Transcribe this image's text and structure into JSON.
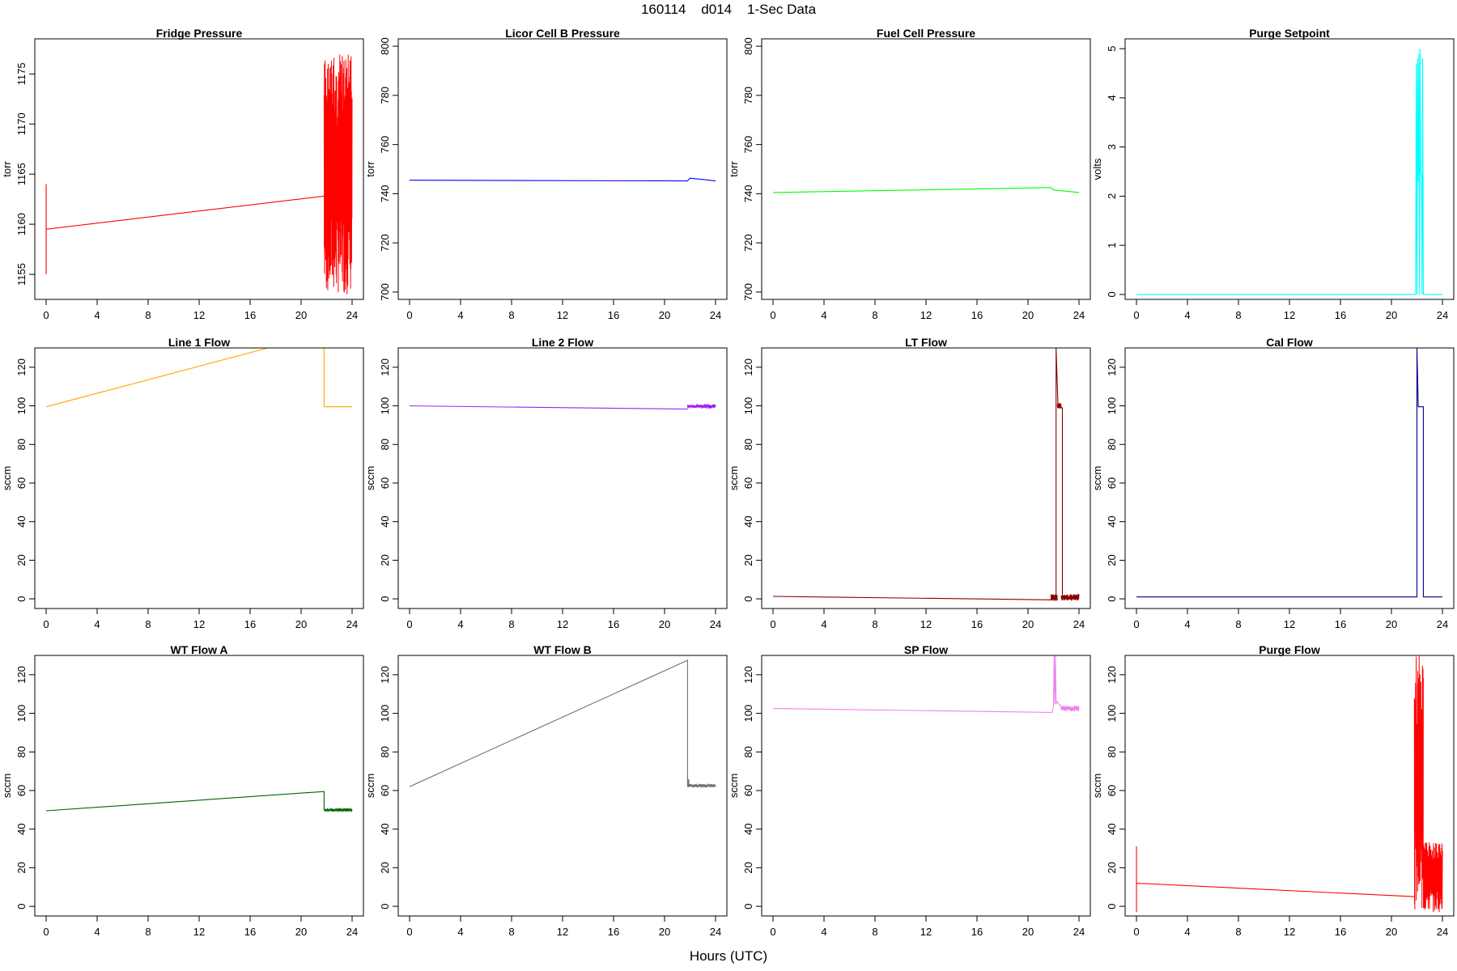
{
  "figure": {
    "title": "160114    d014    1-Sec Data",
    "xlabel": "Hours (UTC)"
  },
  "chart_data": [
    {
      "type": "line",
      "title": "Fridge Pressure",
      "ylabel": "torr",
      "color": "#ff0000",
      "xlim": [
        0,
        24
      ],
      "xticks": [
        0,
        4,
        8,
        12,
        16,
        20,
        24
      ],
      "ylim": [
        1152.5,
        1178.5
      ],
      "yticks": [
        1155,
        1160,
        1165,
        1170,
        1175
      ],
      "segments": [
        {
          "x": [
            0,
            0,
            0,
            21.8
          ],
          "y": [
            1155,
            1164,
            1159.5,
            1162.8
          ]
        }
      ],
      "bands": [
        {
          "x": [
            21.8,
            24
          ],
          "ymin": 1153,
          "ymax": 1177,
          "density": 160
        }
      ]
    },
    {
      "type": "line",
      "title": "Licor Cell B Pressure",
      "ylabel": "torr",
      "color": "#0000ff",
      "xlim": [
        0,
        24
      ],
      "xticks": [
        0,
        4,
        8,
        12,
        16,
        20,
        24
      ],
      "ylim": [
        697,
        803
      ],
      "yticks": [
        700,
        720,
        740,
        760,
        780,
        800
      ],
      "segments": [
        {
          "x": [
            0,
            21.8,
            22,
            23,
            24
          ],
          "y": [
            745.5,
            745.2,
            746.3,
            745.8,
            745.2
          ]
        }
      ],
      "bands": []
    },
    {
      "type": "line",
      "title": "Fuel Cell Pressure",
      "ylabel": "torr",
      "color": "#00ff00",
      "xlim": [
        0,
        24
      ],
      "xticks": [
        0,
        4,
        8,
        12,
        16,
        20,
        24
      ],
      "ylim": [
        697,
        803
      ],
      "yticks": [
        700,
        720,
        740,
        760,
        780,
        800
      ],
      "segments": [
        {
          "x": [
            0,
            21.8,
            22,
            23,
            24
          ],
          "y": [
            740.5,
            742.5,
            741.5,
            741,
            740.5
          ]
        }
      ],
      "bands": []
    },
    {
      "type": "line",
      "title": "Purge Setpoint",
      "ylabel": "volts",
      "color": "#00ffff",
      "xlim": [
        0,
        24
      ],
      "xticks": [
        0,
        4,
        8,
        12,
        16,
        20,
        24
      ],
      "ylim": [
        -0.1,
        5.2
      ],
      "yticks": [
        0,
        1,
        2,
        3,
        4,
        5
      ],
      "segments": [
        {
          "x": [
            0,
            21.9,
            21.95,
            22,
            22.05,
            22.1,
            22.15,
            22.2,
            22.25,
            22.3,
            22.35,
            22.4,
            22.45,
            22.5,
            22.6,
            24
          ],
          "y": [
            0,
            0,
            4.7,
            0,
            4.8,
            2.3,
            4.9,
            0,
            5.0,
            2.5,
            2.4,
            0,
            4.8,
            0,
            0,
            0
          ]
        }
      ],
      "bands": []
    },
    {
      "type": "line",
      "title": "Line 1 Flow",
      "ylabel": "sccm",
      "color": "#ffa500",
      "xlim": [
        0,
        24
      ],
      "xticks": [
        0,
        4,
        8,
        12,
        16,
        20,
        24
      ],
      "ylim": [
        -5,
        130
      ],
      "yticks": [
        0,
        20,
        40,
        60,
        80,
        100,
        120
      ],
      "segments": [
        {
          "x": [
            0,
            17.4
          ],
          "y": [
            99.5,
            130
          ]
        },
        {
          "x": [
            21.8,
            21.8,
            24
          ],
          "y": [
            130,
            99.5,
            99.5
          ]
        }
      ],
      "bands": []
    },
    {
      "type": "line",
      "title": "Line 2 Flow",
      "ylabel": "sccm",
      "color": "#a020f0",
      "xlim": [
        0,
        24
      ],
      "xticks": [
        0,
        4,
        8,
        12,
        16,
        20,
        24
      ],
      "ylim": [
        -5,
        130
      ],
      "yticks": [
        0,
        20,
        40,
        60,
        80,
        100,
        120
      ],
      "segments": [
        {
          "x": [
            0,
            21.8
          ],
          "y": [
            100,
            98.3
          ]
        }
      ],
      "bands": [
        {
          "x": [
            21.8,
            24
          ],
          "ymin": 98.5,
          "ymax": 101,
          "density": 60
        }
      ]
    },
    {
      "type": "line",
      "title": "LT Flow",
      "ylabel": "sccm",
      "color": "#8b0000",
      "xlim": [
        0,
        24
      ],
      "xticks": [
        0,
        4,
        8,
        12,
        16,
        20,
        24
      ],
      "ylim": [
        -5,
        130
      ],
      "yticks": [
        0,
        20,
        40,
        60,
        80,
        100,
        120
      ],
      "segments": [
        {
          "x": [
            0,
            21.8,
            22.2,
            22.2,
            22.35,
            22.35,
            22.7,
            22.7,
            24
          ],
          "y": [
            1.3,
            -0.5,
            0.5,
            130,
            101,
            99,
            99,
            1,
            1
          ]
        }
      ],
      "bands": [
        {
          "x": [
            21.8,
            22.3
          ],
          "ymin": -1,
          "ymax": 2.5,
          "density": 25
        },
        {
          "x": [
            22.3,
            22.6
          ],
          "ymin": 98.5,
          "ymax": 101.5,
          "density": 20
        },
        {
          "x": [
            22.6,
            24
          ],
          "ymin": -1,
          "ymax": 2.5,
          "density": 60
        }
      ]
    },
    {
      "type": "line",
      "title": "Cal Flow",
      "ylabel": "sccm",
      "color": "#00008b",
      "xlim": [
        0,
        24
      ],
      "xticks": [
        0,
        4,
        8,
        12,
        16,
        20,
        24
      ],
      "ylim": [
        -5,
        130
      ],
      "yticks": [
        0,
        20,
        40,
        60,
        80,
        100,
        120
      ],
      "segments": [
        {
          "x": [
            0,
            21.9,
            22.0,
            22.0,
            22.1,
            22.1,
            22.5,
            22.5,
            24
          ],
          "y": [
            1,
            1,
            1,
            130,
            100,
            99.5,
            99.5,
            1,
            1
          ]
        }
      ],
      "bands": []
    },
    {
      "type": "line",
      "title": "WT Flow A",
      "ylabel": "sccm",
      "color": "#006400",
      "xlim": [
        0,
        24
      ],
      "xticks": [
        0,
        4,
        8,
        12,
        16,
        20,
        24
      ],
      "ylim": [
        -5,
        130
      ],
      "yticks": [
        0,
        20,
        40,
        60,
        80,
        100,
        120
      ],
      "segments": [
        {
          "x": [
            0,
            21.8,
            21.8
          ],
          "y": [
            49.5,
            59.5,
            50
          ]
        }
      ],
      "bands": [
        {
          "x": [
            21.8,
            24
          ],
          "ymin": 49,
          "ymax": 50.8,
          "density": 50
        }
      ]
    },
    {
      "type": "line",
      "title": "WT Flow B",
      "ylabel": "sccm",
      "color": "#707070",
      "xlim": [
        0,
        24
      ],
      "xticks": [
        0,
        4,
        8,
        12,
        16,
        20,
        24
      ],
      "ylim": [
        -5,
        130
      ],
      "yticks": [
        0,
        20,
        40,
        60,
        80,
        100,
        120
      ],
      "segments": [
        {
          "x": [
            0,
            21.8,
            21.8,
            21.9,
            21.9
          ],
          "y": [
            62,
            127.5,
            62,
            66,
            62.5
          ]
        }
      ],
      "bands": [
        {
          "x": [
            21.8,
            24
          ],
          "ymin": 61.5,
          "ymax": 63.5,
          "density": 50
        }
      ]
    },
    {
      "type": "line",
      "title": "SP Flow",
      "ylabel": "sccm",
      "color": "#ee82ee",
      "xlim": [
        0,
        24
      ],
      "xticks": [
        0,
        4,
        8,
        12,
        16,
        20,
        24
      ],
      "ylim": [
        -5,
        130
      ],
      "yticks": [
        0,
        20,
        40,
        60,
        80,
        100,
        120
      ],
      "segments": [
        {
          "x": [
            0,
            21.8,
            21.9,
            22.0,
            22.05,
            22.1,
            22.15,
            22.2,
            22.3,
            22.5,
            22.6,
            22.6
          ],
          "y": [
            102.5,
            100.5,
            100.5,
            104,
            130,
            105,
            130,
            105,
            106,
            104,
            104,
            102
          ]
        }
      ],
      "bands": [
        {
          "x": [
            22.6,
            24
          ],
          "ymin": 101,
          "ymax": 104,
          "density": 40
        }
      ]
    },
    {
      "type": "line",
      "title": "Purge Flow",
      "ylabel": "sccm",
      "color": "#ff0000",
      "xlim": [
        0,
        24
      ],
      "xticks": [
        0,
        4,
        8,
        12,
        16,
        20,
        24
      ],
      "ylim": [
        -5,
        130
      ],
      "yticks": [
        0,
        20,
        40,
        60,
        80,
        100,
        120
      ],
      "segments": [
        {
          "x": [
            0,
            0,
            0,
            21.8
          ],
          "y": [
            -3,
            31,
            12,
            5
          ]
        }
      ],
      "bands": [
        {
          "x": [
            21.8,
            22.5
          ],
          "ymin": -3,
          "ymax": 130,
          "density": 60
        },
        {
          "x": [
            22.5,
            24
          ],
          "ymin": -3,
          "ymax": 34,
          "density": 90
        }
      ]
    }
  ]
}
